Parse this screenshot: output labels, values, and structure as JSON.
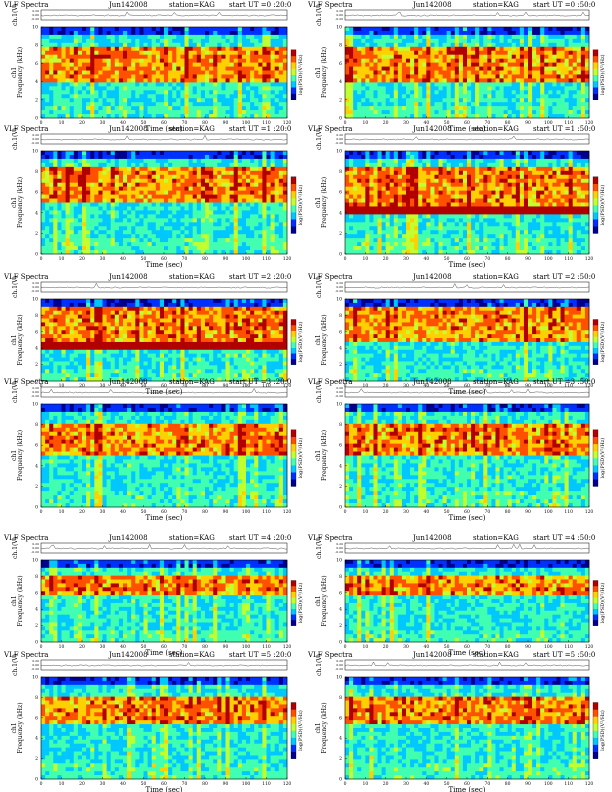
{
  "chart_data": [
    {
      "type": "heatmap",
      "title": "VLF Spectra",
      "date": "Jun142008",
      "station": "station=KAG",
      "start": "start UT =0 :20:0",
      "xlabel": "Time (sec)",
      "ylabel_top": "ch.1(V)",
      "ylabel": "Frequency (kHz)",
      "channel": "ch1",
      "cbar": "log(PSD)(V²/Hz)",
      "xlim": [
        0,
        120
      ],
      "ylim": [
        0,
        10
      ],
      "xticks": [
        0,
        10,
        20,
        30,
        40,
        50,
        60,
        70,
        80,
        90,
        100,
        110,
        120
      ],
      "yticks": [
        0,
        2,
        4,
        6,
        8,
        10
      ],
      "vticks": [
        "0.20",
        "0.00",
        "-0.20"
      ],
      "band": [
        4,
        8
      ],
      "seed": 3,
      "line": null
    },
    {
      "type": "heatmap",
      "title": "VLF Spectra",
      "date": "Jun142008",
      "station": "station=KAG",
      "start": "start UT =0 :50:0",
      "xlabel": "Time (sec)",
      "ylabel_top": "ch.1(V)",
      "ylabel": "Frequency (kHz)",
      "channel": "ch1",
      "cbar": "log(PSD)(V²/Hz)",
      "xlim": [
        0,
        120
      ],
      "ylim": [
        0,
        10
      ],
      "xticks": [
        0,
        10,
        20,
        30,
        40,
        50,
        60,
        70,
        80,
        90,
        100,
        110,
        120
      ],
      "yticks": [
        0,
        2,
        4,
        6,
        8,
        10
      ],
      "vticks": [
        "0.20",
        "0.00",
        "-0.20"
      ],
      "band": [
        4,
        8
      ],
      "seed": 7,
      "line": null
    },
    {
      "type": "heatmap",
      "title": "VLF Spectra",
      "date": "Jun142008",
      "station": "station=KAG",
      "start": "start UT =1 :20:0",
      "xlabel": "Time (sec)",
      "ylabel_top": "ch.1(V)",
      "ylabel": "Frequency (kHz)",
      "channel": "ch1",
      "cbar": "log(PSD)(V²/Hz)",
      "xlim": [
        0,
        120
      ],
      "ylim": [
        0,
        10
      ],
      "xticks": [
        0,
        10,
        20,
        30,
        40,
        50,
        60,
        70,
        80,
        90,
        100,
        110,
        120
      ],
      "yticks": [
        0,
        2,
        4,
        6,
        8,
        10
      ],
      "vticks": [
        "0.20",
        "0.00",
        "-0.20"
      ],
      "band": [
        5,
        8.5
      ],
      "seed": 11,
      "line": null
    },
    {
      "type": "heatmap",
      "title": "VLF Spectra",
      "date": "Jun142008",
      "station": "station=KAG",
      "start": "start UT =1 :50:0",
      "xlabel": "Time (sec)",
      "ylabel_top": "ch.1(V)",
      "ylabel": "Frequency (kHz)",
      "channel": "ch1",
      "cbar": "log(PSD)(V²/Hz)",
      "xlim": [
        0,
        120
      ],
      "ylim": [
        0,
        10
      ],
      "xticks": [
        0,
        10,
        20,
        30,
        40,
        50,
        60,
        70,
        80,
        90,
        100,
        110,
        120
      ],
      "yticks": [
        0,
        2,
        4,
        6,
        8,
        10
      ],
      "vticks": [
        "0.20",
        "0.00",
        "-0.20"
      ],
      "band": [
        4.5,
        8.5
      ],
      "seed": 13,
      "line": 4.3
    },
    {
      "type": "heatmap",
      "title": "VLF Spectra",
      "date": "Jun142008",
      "station": "station=KAG",
      "start": "start UT =2 :20:0",
      "xlabel": "Time (sec)",
      "ylabel_top": "ch.1(V)",
      "ylabel": "Frequency (kHz)",
      "channel": "ch1",
      "cbar": "log(PSD)(V²/Hz)",
      "xlim": [
        0,
        120
      ],
      "ylim": [
        0,
        10
      ],
      "xticks": [
        0,
        10,
        20,
        30,
        40,
        50,
        60,
        70,
        80,
        90,
        100,
        110,
        120
      ],
      "yticks": [
        0,
        2,
        4,
        6,
        8,
        10
      ],
      "vticks": [
        "0.20",
        "0.00",
        "-0.20"
      ],
      "band": [
        4.5,
        9
      ],
      "seed": 17,
      "line": 4.2
    },
    {
      "type": "heatmap",
      "title": "VLF Spectra",
      "date": "Jun142008",
      "station": "station=KAG",
      "start": "start UT =2 :50:0",
      "xlabel": "Time (sec)",
      "ylabel_top": "ch.1(V)",
      "ylabel": "Frequency (kHz)",
      "channel": "ch1",
      "cbar": "log(PSD)(V²/Hz)",
      "xlim": [
        0,
        120
      ],
      "ylim": [
        0,
        10
      ],
      "xticks": [
        0,
        10,
        20,
        30,
        40,
        50,
        60,
        70,
        80,
        90,
        100,
        110,
        120
      ],
      "yticks": [
        0,
        2,
        4,
        6,
        8,
        10
      ],
      "vticks": [
        "0.20",
        "0.00",
        "-0.20"
      ],
      "band": [
        5,
        9
      ],
      "seed": 19,
      "line": null
    },
    {
      "type": "heatmap",
      "title": "VLF Spectra",
      "date": "Jun142008",
      "station": "station=KAG",
      "start": "start UT =3 :20:0",
      "xlabel": "Time (sec)",
      "ylabel_top": "ch.1(V)",
      "ylabel": "Frequency (kHz)",
      "channel": "ch1",
      "cbar": "log(PSD)(V²/Hz)",
      "xlim": [
        0,
        120
      ],
      "ylim": [
        0,
        10
      ],
      "xticks": [
        0,
        10,
        20,
        30,
        40,
        50,
        60,
        70,
        80,
        90,
        100,
        110,
        120
      ],
      "yticks": [
        0,
        2,
        4,
        6,
        8,
        10
      ],
      "vticks": [
        "0.20",
        "0.00",
        "-0.20"
      ],
      "band": [
        5,
        8
      ],
      "seed": 23,
      "line": null
    },
    {
      "type": "heatmap",
      "title": "VLF Spectra",
      "date": "Jun142008",
      "station": "station=KAG",
      "start": "start UT =3 :50:0",
      "xlabel": "Time (sec)",
      "ylabel_top": "ch.1(V)",
      "ylabel": "Frequency (kHz)",
      "channel": "ch1",
      "cbar": "log(PSD)(V²/Hz)",
      "xlim": [
        0,
        120
      ],
      "ylim": [
        0,
        10
      ],
      "xticks": [
        0,
        10,
        20,
        30,
        40,
        50,
        60,
        70,
        80,
        90,
        100,
        110,
        120
      ],
      "yticks": [
        0,
        2,
        4,
        6,
        8,
        10
      ],
      "vticks": [
        "0.20",
        "0.00",
        "-0.20"
      ],
      "band": [
        5,
        8
      ],
      "seed": 29,
      "line": null
    },
    {
      "type": "heatmap",
      "title": "VLF Spectra",
      "date": "Jun142008",
      "station": "station=KAG",
      "start": "start UT =4 :20:0",
      "xlabel": "Time (sec)",
      "ylabel_top": "ch.1(V)",
      "ylabel": "Frequency (kHz)",
      "channel": "ch1",
      "cbar": "log(PSD)(V²/Hz)",
      "xlim": [
        0,
        120
      ],
      "ylim": [
        0,
        10
      ],
      "xticks": [
        0,
        10,
        20,
        30,
        40,
        50,
        60,
        70,
        80,
        90,
        100,
        110,
        120
      ],
      "yticks": [
        0,
        2,
        4,
        6,
        8,
        10
      ],
      "vticks": [
        "0.20",
        "0.00",
        "-0.20"
      ],
      "band": [
        5.5,
        8
      ],
      "seed": 31,
      "line": null
    },
    {
      "type": "heatmap",
      "title": "VLF Spectra",
      "date": "Jun142008",
      "station": "station=KAG",
      "start": "start UT =4 :50:0",
      "xlabel": "Time (sec)",
      "ylabel_top": "ch.1(V)",
      "ylabel": "Frequency (kHz)",
      "channel": "ch1",
      "cbar": "log(PSD)(V²/Hz)",
      "xlim": [
        0,
        120
      ],
      "ylim": [
        0,
        10
      ],
      "xticks": [
        0,
        10,
        20,
        30,
        40,
        50,
        60,
        70,
        80,
        90,
        100,
        110,
        120
      ],
      "yticks": [
        0,
        2,
        4,
        6,
        8,
        10
      ],
      "vticks": [
        "0.20",
        "0.00",
        "-0.20"
      ],
      "band": [
        5.5,
        8
      ],
      "seed": 37,
      "line": null
    },
    {
      "type": "heatmap",
      "title": "VLF Spectra",
      "date": "Jun142008",
      "station": "station=KAG",
      "start": "start UT =5 :20:0",
      "xlabel": "Time (sec)",
      "ylabel_top": "ch.1(V)",
      "ylabel": "Frequency (kHz)",
      "channel": "ch1",
      "cbar": "log(PSD)(V²/Hz)",
      "xlim": [
        0,
        120
      ],
      "ylim": [
        0,
        10
      ],
      "xticks": [
        0,
        10,
        20,
        30,
        40,
        50,
        60,
        70,
        80,
        90,
        100,
        110,
        120
      ],
      "yticks": [
        0,
        2,
        4,
        6,
        8,
        10
      ],
      "vticks": [
        "0.20",
        "0.00",
        "-0.20"
      ],
      "band": [
        5.5,
        8
      ],
      "seed": 41,
      "line": null
    },
    {
      "type": "heatmap",
      "title": "VLF Spectra",
      "date": "Jun142008",
      "station": "station=KAG",
      "start": "start UT =5 :50:0",
      "xlabel": "Time (sec)",
      "ylabel_top": "ch.1(V)",
      "ylabel": "Frequency (kHz)",
      "channel": "ch1",
      "cbar": "log(PSD)(V²/Hz)",
      "xlim": [
        0,
        120
      ],
      "ylim": [
        0,
        10
      ],
      "xticks": [
        0,
        10,
        20,
        30,
        40,
        50,
        60,
        70,
        80,
        90,
        100,
        110,
        120
      ],
      "yticks": [
        0,
        2,
        4,
        6,
        8,
        10
      ],
      "vticks": [
        "0.20",
        "0.00",
        "-0.20"
      ],
      "band": [
        5.5,
        8
      ],
      "seed": 43,
      "line": null
    }
  ],
  "colors": {
    "scale": [
      "#00008f",
      "#0030ff",
      "#00c8ff",
      "#40ffb0",
      "#c0ff30",
      "#ffd000",
      "#ff5000",
      "#b00000"
    ],
    "text": "#000000"
  }
}
